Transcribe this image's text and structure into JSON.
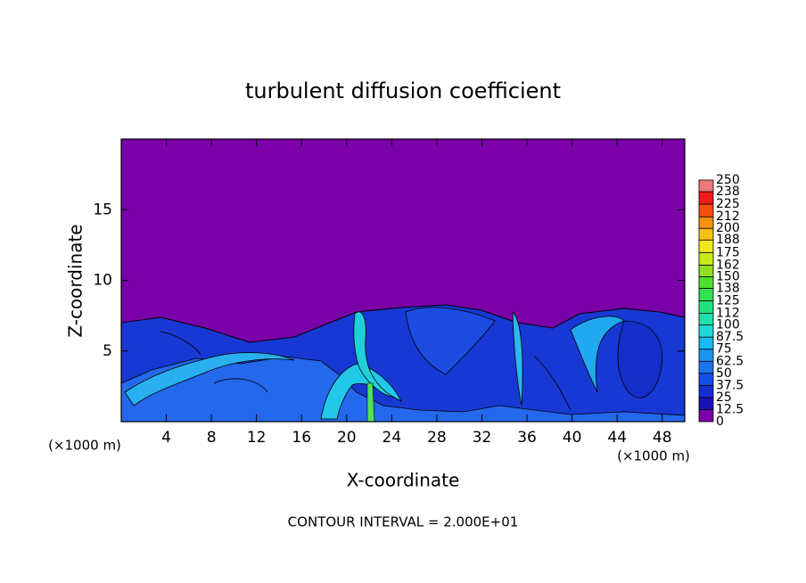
{
  "chart_data": {
    "type": "contour",
    "title": "turbulent diffusion coefficient",
    "xlabel": "X-coordinate",
    "ylabel": "Z-coordinate",
    "xunit_left": "(×1000 m)",
    "xunit_right": "(×1000 m)",
    "footnote": "CONTOUR INTERVAL = 2.000E+01",
    "xlim": [
      0,
      50
    ],
    "ylim": [
      0,
      20
    ],
    "xticks": [
      4,
      8,
      12,
      16,
      20,
      24,
      28,
      32,
      36,
      40,
      44,
      48
    ],
    "yticks": [
      5,
      10,
      15
    ],
    "colorbar": {
      "levels": [
        0,
        12.5,
        25,
        37.5,
        50,
        62.5,
        75,
        87.5,
        100,
        112,
        125,
        138,
        150,
        162,
        175,
        188,
        200,
        212,
        225,
        238,
        250
      ],
      "colors": [
        "#7a00a8",
        "#1a10b8",
        "#1430d0",
        "#1450e8",
        "#1a74f0",
        "#1896f0",
        "#18b8f0",
        "#20d8d8",
        "#20e0b0",
        "#20e080",
        "#30e050",
        "#50e030",
        "#90e020",
        "#c8e818",
        "#f0e818",
        "#f8c010",
        "#f89010",
        "#f85010",
        "#f01818",
        "#f07878"
      ]
    }
  }
}
